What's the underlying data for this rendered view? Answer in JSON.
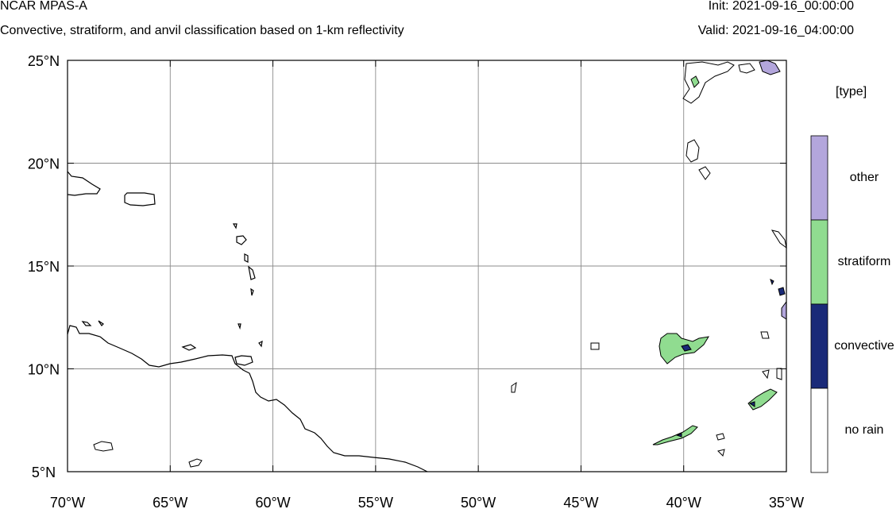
{
  "header": {
    "title": "NCAR MPAS-A",
    "subtitle": "Convective, stratiform, and anvil classification based on 1-km reflectivity",
    "init": "Init: 2021-09-16_00:00:00",
    "valid": "Valid: 2021-09-16_04:00:00"
  },
  "axes": {
    "lat_labels": [
      "25°N",
      "20°N",
      "15°N",
      "10°N",
      "5°N"
    ],
    "lon_labels": [
      "70°W",
      "65°W",
      "60°W",
      "55°W",
      "50°W",
      "45°W",
      "40°W",
      "35°W"
    ],
    "lat_values": [
      25,
      20,
      15,
      10,
      5
    ],
    "lon_values": [
      -70,
      -65,
      -60,
      -55,
      -50,
      -45,
      -40,
      -35
    ],
    "extent": {
      "lon": [
        -70,
        -35
      ],
      "lat": [
        5,
        25
      ]
    },
    "grid": true
  },
  "legend": {
    "title": "[type]",
    "items": [
      {
        "label": "other",
        "color": "#b3a6dc"
      },
      {
        "label": "stratiform",
        "color": "#90dc90"
      },
      {
        "label": "convective",
        "color": "#1a2a78"
      },
      {
        "label": "no rain",
        "color": "#ffffff"
      }
    ]
  },
  "colors": {
    "other": "#b3a6dc",
    "stratiform": "#90dc90",
    "convective": "#1a2a78",
    "coastline": "#000000",
    "grid": "#8c8c8c"
  }
}
